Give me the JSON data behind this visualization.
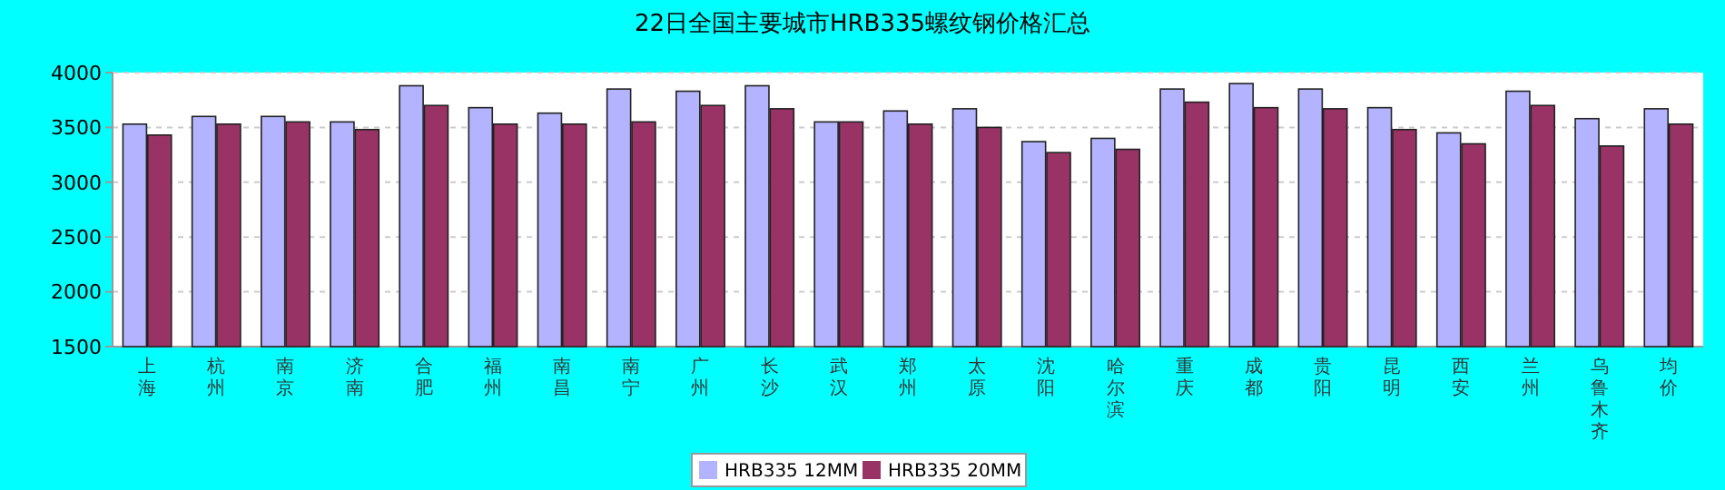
{
  "chart_data": {
    "type": "bar",
    "title": "22日全国主要城市HRB335螺纹钢价格汇总",
    "categories": [
      "上海",
      "杭州",
      "南京",
      "济南",
      "合肥",
      "福州",
      "南昌",
      "南宁",
      "广州",
      "长沙",
      "武汉",
      "郑州",
      "太原",
      "沈阳",
      "哈尔滨",
      "重庆",
      "成都",
      "贵阳",
      "昆明",
      "西安",
      "兰州",
      "乌鲁木齐",
      "均价"
    ],
    "series": [
      {
        "name": "HRB335 12MM",
        "color": "#b3b3ff",
        "values": [
          3530,
          3600,
          3600,
          3550,
          3880,
          3680,
          3630,
          3850,
          3830,
          3880,
          3550,
          3650,
          3670,
          3370,
          3400,
          3850,
          3900,
          3850,
          3680,
          3450,
          3830,
          3580,
          3670
        ]
      },
      {
        "name": "HRB335 20MM",
        "color": "#993366",
        "values": [
          3430,
          3530,
          3550,
          3480,
          3700,
          3530,
          3530,
          3550,
          3700,
          3670,
          3550,
          3530,
          3500,
          3270,
          3300,
          3730,
          3680,
          3670,
          3480,
          3350,
          3700,
          3330,
          3530
        ]
      }
    ],
    "ylim": [
      1500,
      4000
    ],
    "yticks": [
      1500,
      2000,
      2500,
      3000,
      3500,
      4000
    ],
    "grid": "y",
    "legend": "bottom"
  }
}
